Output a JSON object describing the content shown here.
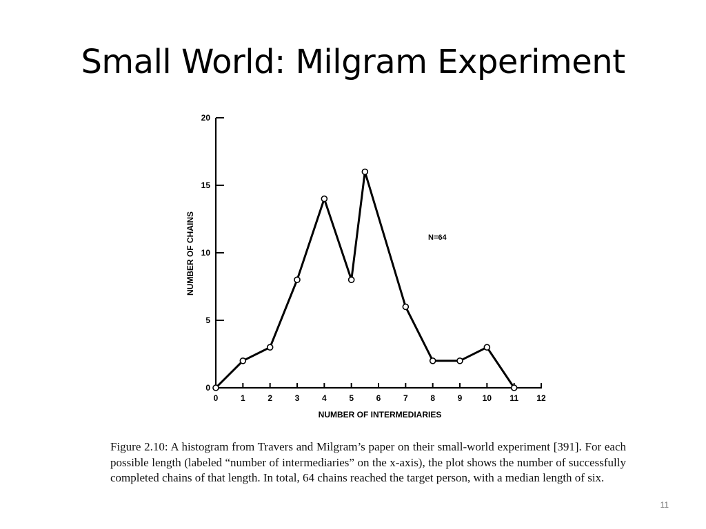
{
  "slide": {
    "title": "Small World: Milgram Experiment",
    "page_number": "11"
  },
  "caption": "Figure 2.10: A histogram from Travers and Milgram’s paper on their small-world experiment [391]. For each possible length (labeled “number of intermediaries” on the x-axis), the plot shows the number of successfully completed chains of that length. In total, 64 chains reached the target person, with a median length of six.",
  "chart_data": {
    "type": "line",
    "title": "",
    "xlabel": "NUMBER OF INTERMEDIARIES",
    "ylabel": "NUMBER OF CHAINS",
    "xlim": [
      0,
      12
    ],
    "ylim": [
      0,
      20
    ],
    "xticks": [
      0,
      1,
      2,
      3,
      4,
      5,
      6,
      7,
      8,
      9,
      10,
      11,
      12
    ],
    "xtick_labels": [
      "0",
      "1",
      "2",
      "3",
      "4",
      "5",
      "6",
      "7",
      "8",
      "9",
      "10",
      "11",
      "12"
    ],
    "yticks": [
      0,
      5,
      10,
      15,
      20
    ],
    "ytick_labels": [
      "0",
      "5",
      "10",
      "15",
      "20"
    ],
    "grid": false,
    "annotation": "N=64",
    "series": [
      {
        "x": [
          0,
          1,
          2,
          3,
          4,
          5,
          5.5,
          7,
          8,
          9,
          10,
          11
        ],
        "y": [
          0,
          2,
          3,
          8,
          14,
          8,
          16,
          6,
          2,
          2,
          3,
          0
        ]
      }
    ]
  }
}
